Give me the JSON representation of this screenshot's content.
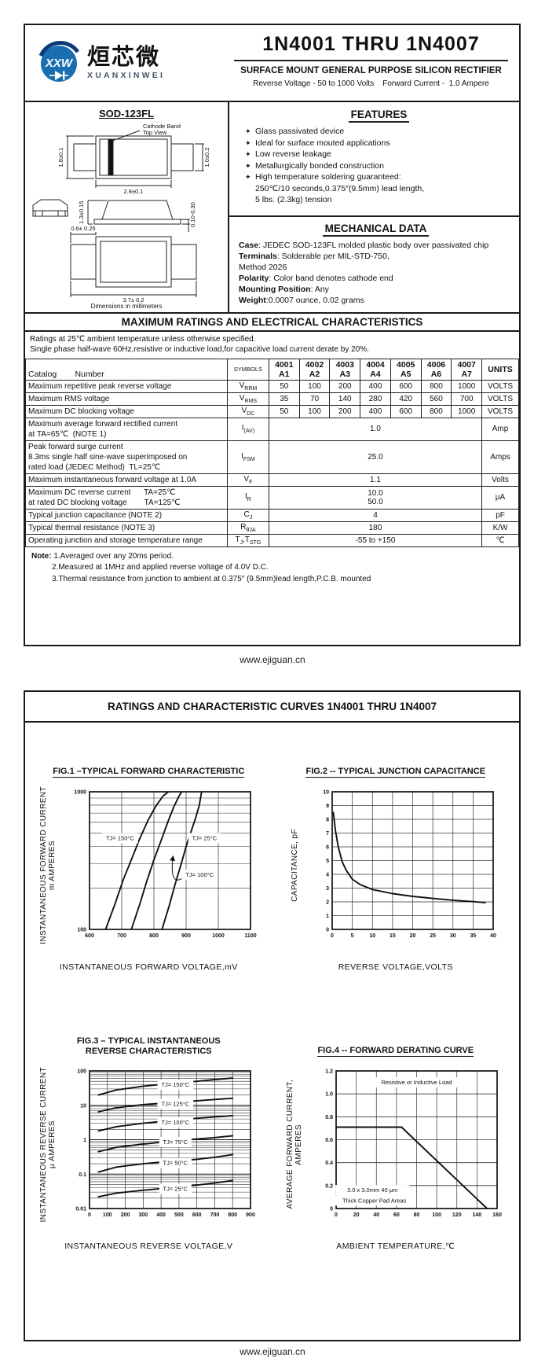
{
  "page": {
    "header": {
      "logo_mark": "XXW",
      "brand_cn": "烜芯微",
      "brand_en": "XUANXINWEI",
      "part_title": "1N4001 THRU  1N4007",
      "subtitle": "SURFACE MOUNT GENERAL PURPOSE SILICON RECTIFIER",
      "line": "Reverse Voltage - 50 to 1000 Volts    Forward Current -  1.0 Ampere"
    },
    "package": {
      "name": "SOD-123FL",
      "ann1": "Cathode Band",
      "ann2": "Top View",
      "d_body_h": "1.8±0.1",
      "d_pad_h": "1.0±0.2",
      "d_body_w": "2.8±0.1",
      "d_side_h": "1.3±0.15",
      "d_standoff": "0.10-0.30",
      "d_pad_w": "0.6± 0.25",
      "d_total_w": "3.7± 0.2",
      "caption": "Dimensions in millimeters"
    },
    "features": {
      "heading": "FEATURES",
      "items": [
        {
          "bullet": true,
          "text": "Glass passivated device"
        },
        {
          "bullet": true,
          "text": "Ideal for surface mouted applications"
        },
        {
          "bullet": true,
          "text": "Low reverse leakage"
        },
        {
          "bullet": true,
          "text": "Metallurgically bonded construction"
        },
        {
          "bullet": true,
          "text": "High temperature soldering guaranteed:"
        },
        {
          "bullet": false,
          "text": "250℃/10 seconds,0.375″(9.5mm) lead length,"
        },
        {
          "bullet": false,
          "text": "5 lbs. (2.3kg) tension"
        }
      ]
    },
    "mechanical": {
      "heading": "MECHANICAL DATA",
      "lines": [
        {
          "label": "Case",
          "text": ": JEDEC SOD-123FL molded plastic body over passivated chip"
        },
        {
          "label": "Terminals",
          "text": ": Solderable per MIL-STD-750,"
        },
        {
          "label": "",
          "text": "Method 2026"
        },
        {
          "label": "Polarity",
          "text": ": Color band denotes cathode end"
        },
        {
          "label": "Mounting Position",
          "text": ": Any"
        },
        {
          "label": "Weight",
          "text": ":0.0007 ounce, 0.02 grams"
        }
      ]
    },
    "ratings": {
      "heading": "MAXIMUM RATINGS AND ELECTRICAL CHARACTERISTICS",
      "conditions": [
        "Ratings at 25℃ ambient temperature unless otherwise specified.",
        "Single phase half-wave 60Hz,resistive or inductive load,for capacitive load current derate by 20%."
      ],
      "table": {
        "catalog_label": "Catalog        Number",
        "symbols_header": "SYMBOLS",
        "units_header": "UNITS",
        "devices": [
          [
            "4001",
            "A1"
          ],
          [
            "4002",
            "A2"
          ],
          [
            "4003",
            "A3"
          ],
          [
            "4004",
            "A4"
          ],
          [
            "4005",
            "A5"
          ],
          [
            "4006",
            "A6"
          ],
          [
            "4007",
            "A7"
          ]
        ],
        "rows": [
          {
            "param": [
              "Maximum repetitive peak reverse voltage"
            ],
            "symbol": [
              [
                "V",
                "RRM"
              ]
            ],
            "values": [
              "50",
              "100",
              "200",
              "400",
              "600",
              "800",
              "1000"
            ],
            "unit": "VOLTS"
          },
          {
            "param": [
              "Maximum RMS voltage"
            ],
            "symbol": [
              [
                "V",
                "RMS"
              ]
            ],
            "values": [
              "35",
              "70",
              "140",
              "280",
              "420",
              "560",
              "700"
            ],
            "unit": "VOLTS"
          },
          {
            "param": [
              "Maximum DC blocking voltage"
            ],
            "symbol": [
              [
                "V",
                "DC"
              ]
            ],
            "values": [
              "50",
              "100",
              "200",
              "400",
              "600",
              "800",
              "1000"
            ],
            "unit": "VOLTS"
          },
          {
            "param": [
              "Maximum average forward rectified current",
              "at TA=65℃  (NOTE 1)"
            ],
            "symbol": [
              [
                "I",
                "(AV)"
              ]
            ],
            "merged": [
              "1.0"
            ],
            "unit": "Amp"
          },
          {
            "param": [
              "Peak forward surge current",
              "8.3ms single half sine-wave superimposed on",
              "rated load (JEDEC Method)  TL=25℃"
            ],
            "symbol": [
              [
                "I",
                "FSM"
              ]
            ],
            "merged": [
              "25.0"
            ],
            "unit": "Amps"
          },
          {
            "param": [
              "Maximum instantaneous forward voltage at 1.0A"
            ],
            "symbol": [
              [
                "V",
                "F"
              ]
            ],
            "merged": [
              "1.1"
            ],
            "unit": "Volts"
          },
          {
            "param": [
              "Maximum DC reverse current      TA=25℃",
              "at rated DC blocking voltage        TA=125℃"
            ],
            "symbol": [
              [
                "I",
                "R"
              ]
            ],
            "merged": [
              "10.0",
              "50.0"
            ],
            "unit": "μA"
          },
          {
            "param": [
              "Typical junction capacitance (NOTE 2)"
            ],
            "symbol": [
              [
                "C",
                "J"
              ]
            ],
            "merged": [
              "4"
            ],
            "unit": "pF"
          },
          {
            "param": [
              "Typical thermal resistance (NOTE 3)"
            ],
            "symbol": [
              [
                "R",
                "θJA"
              ]
            ],
            "merged": [
              "180"
            ],
            "unit": "K/W"
          },
          {
            "param": [
              "Operating junction and storage temperature range"
            ],
            "symbol": [
              [
                "T",
                "J"
              ],
              [
                ",T",
                "STG"
              ]
            ],
            "merged": [
              "-55 to +150"
            ],
            "unit": "℃"
          }
        ]
      },
      "notes": {
        "label": "Note:",
        "items": [
          "1.Averaged over any 20ms period.",
          "2.Measured at 1MHz and applied reverse voltage of 4.0V D.C.",
          "3.Thermal resistance from junction to ambient  at 0.375″ (9.5mm)lead length,P.C.B. mounted"
        ]
      }
    },
    "site": "www.ejiguan.cn"
  },
  "curves_page": {
    "heading": "RATINGS AND CHARACTERISTIC CURVES 1N4001 THRU 1N4007"
  },
  "chart_data": [
    {
      "id": "fig1",
      "type": "line",
      "title": "FIG.1 –TYPICAL FORWARD CHARACTERISTIC",
      "title2": "",
      "xlabel": "INSTANTANEOUS FORWARD VOLTAGE,mV",
      "ylabel": "INSTANTANEOUS FORWARD CURRENT",
      "ylabel2": "m AMPERES",
      "xlim": [
        600,
        1100
      ],
      "xticks": [
        600,
        700,
        800,
        900,
        1000,
        1100
      ],
      "yscale": "log",
      "ylim": [
        100,
        1000
      ],
      "yticks": [
        {
          "v": 100,
          "l": "100"
        },
        {
          "v": 1000,
          "l": "1000"
        }
      ],
      "grid": true,
      "legend": "on-curve labels",
      "series": [
        {
          "name": "TJ= 150°C",
          "points": [
            [
              650,
              100
            ],
            [
              680,
              155
            ],
            [
              705,
              230
            ],
            [
              732,
              330
            ],
            [
              755,
              450
            ],
            [
              780,
              610
            ],
            [
              805,
              780
            ],
            [
              828,
              930
            ],
            [
              845,
              1000
            ]
          ]
        },
        {
          "name": "TJ= 100°C",
          "points": [
            [
              730,
              100
            ],
            [
              757,
              155
            ],
            [
              778,
              225
            ],
            [
              800,
              320
            ],
            [
              822,
              440
            ],
            [
              843,
              600
            ],
            [
              862,
              780
            ],
            [
              878,
              930
            ],
            [
              886,
              1000
            ]
          ]
        },
        {
          "name": "TJ= 25°C",
          "points": [
            [
              825,
              100
            ],
            [
              848,
              150
            ],
            [
              865,
              210
            ],
            [
              883,
              290
            ],
            [
              900,
              400
            ],
            [
              916,
              520
            ],
            [
              930,
              650
            ],
            [
              941,
              800
            ],
            [
              948,
              1000
            ]
          ]
        }
      ],
      "labels": [
        {
          "text": "TJ= 150°C",
          "x": 695,
          "y": 460
        },
        {
          "text": "TJ= 25°C",
          "x": 957,
          "y": 460
        },
        {
          "text": "TJ= 100°C",
          "x": 942,
          "y": 250,
          "leader": [
            852,
            355
          ]
        }
      ]
    },
    {
      "id": "fig2",
      "type": "line",
      "title": "FIG.2 -- TYPICAL JUNCTION CAPACITANCE",
      "title2": "",
      "xlabel": "REVERSE VOLTAGE,VOLTS",
      "ylabel": "CAPACITANCE, pF",
      "ylabel2": "",
      "xlim": [
        0,
        40
      ],
      "xticks": [
        0,
        5,
        10,
        15,
        20,
        25,
        30,
        35,
        40
      ],
      "yscale": "linear",
      "ylim": [
        0,
        10
      ],
      "yticks": [
        {
          "v": 0,
          "l": "0"
        },
        {
          "v": 1,
          "l": "1"
        },
        {
          "v": 2,
          "l": "2"
        },
        {
          "v": 3,
          "l": "3"
        },
        {
          "v": 4,
          "l": "4"
        },
        {
          "v": 5,
          "l": "5"
        },
        {
          "v": 6,
          "l": "6"
        },
        {
          "v": 7,
          "l": "7"
        },
        {
          "v": 8,
          "l": "8"
        },
        {
          "v": 9,
          "l": "9"
        },
        {
          "v": 10,
          "l": "10"
        }
      ],
      "grid": true,
      "series": [
        {
          "name": "Cj",
          "points": [
            [
              0.3,
              8.5
            ],
            [
              0.8,
              7.2
            ],
            [
              1.5,
              6.0
            ],
            [
              2.5,
              4.9
            ],
            [
              3.5,
              4.3
            ],
            [
              5,
              3.65
            ],
            [
              7,
              3.25
            ],
            [
              10,
              2.9
            ],
            [
              15,
              2.6
            ],
            [
              20,
              2.4
            ],
            [
              25,
              2.25
            ],
            [
              30,
              2.12
            ],
            [
              35,
              2.02
            ],
            [
              38,
              1.95
            ]
          ]
        }
      ],
      "labels": []
    },
    {
      "id": "fig3",
      "type": "line",
      "title": "FIG.3 – TYPICAL INSTANTANEOUS",
      "title2": "REVERSE CHARACTERISTICS",
      "xlabel": "INSTANTANEOUS REVERSE VOLTAGE,V",
      "ylabel": "INSTANTANEOUS REVERSE CURRENT",
      "ylabel2": "μ AMPERES",
      "xlim": [
        0,
        900
      ],
      "xticks": [
        0,
        100,
        200,
        300,
        400,
        500,
        600,
        700,
        800,
        900
      ],
      "yscale": "log",
      "ylim": [
        0.01,
        100
      ],
      "yticks": [
        {
          "v": 0.01,
          "l": "0.01"
        },
        {
          "v": 0.1,
          "l": "0.1"
        },
        {
          "v": 1,
          "l": "1"
        },
        {
          "v": 10,
          "l": "10"
        },
        {
          "v": 100,
          "l": "100"
        }
      ],
      "grid": true,
      "legend": "on-curve labels",
      "series": [
        {
          "name": "TJ= 150°C",
          "points": [
            [
              50,
              20
            ],
            [
              150,
              28
            ],
            [
              300,
              36
            ],
            [
              450,
              43
            ],
            [
              600,
              50
            ],
            [
              700,
              56
            ],
            [
              800,
              62
            ]
          ]
        },
        {
          "name": "TJ= 125°C",
          "points": [
            [
              50,
              6.5
            ],
            [
              150,
              8.5
            ],
            [
              300,
              10.5
            ],
            [
              450,
              12
            ],
            [
              600,
              13.5
            ],
            [
              700,
              14.8
            ],
            [
              800,
              16
            ]
          ]
        },
        {
          "name": "TJ= 100°C",
          "points": [
            [
              50,
              1.8
            ],
            [
              150,
              2.4
            ],
            [
              300,
              3.0
            ],
            [
              450,
              3.6
            ],
            [
              600,
              4.2
            ],
            [
              700,
              4.6
            ],
            [
              800,
              5.0
            ]
          ]
        },
        {
          "name": "TJ= 75°C",
          "points": [
            [
              50,
              0.45
            ],
            [
              150,
              0.6
            ],
            [
              300,
              0.75
            ],
            [
              450,
              0.9
            ],
            [
              600,
              1.05
            ],
            [
              700,
              1.15
            ],
            [
              800,
              1.3
            ]
          ]
        },
        {
          "name": "TJ= 50°C",
          "points": [
            [
              50,
              0.115
            ],
            [
              150,
              0.16
            ],
            [
              300,
              0.2
            ],
            [
              450,
              0.235
            ],
            [
              600,
              0.27
            ],
            [
              700,
              0.31
            ],
            [
              800,
              0.37
            ]
          ]
        },
        {
          "name": "TJ= 25°C",
          "points": [
            [
              50,
              0.022
            ],
            [
              150,
              0.028
            ],
            [
              300,
              0.034
            ],
            [
              450,
              0.04
            ],
            [
              600,
              0.048
            ],
            [
              700,
              0.055
            ],
            [
              800,
              0.065
            ]
          ]
        }
      ],
      "labels": [
        {
          "text": "TJ= 150°C",
          "x": 480,
          "y": 40
        },
        {
          "text": "TJ= 125°C",
          "x": 480,
          "y": 11
        },
        {
          "text": "TJ= 100°C",
          "x": 480,
          "y": 3.2
        },
        {
          "text": "TJ= 75°C",
          "x": 480,
          "y": 0.85
        },
        {
          "text": "TJ= 50°C",
          "x": 480,
          "y": 0.21
        },
        {
          "text": "TJ= 25°C",
          "x": 480,
          "y": 0.037
        }
      ]
    },
    {
      "id": "fig4",
      "type": "line",
      "title": "FIG.4 -- FORWARD DERATING CURVE",
      "title2": "",
      "xlabel": "AMBIENT TEMPERATURE,℃",
      "ylabel": "AVERAGE FORWARD CURRENT,",
      "ylabel2": "AMPERES",
      "xlim": [
        0,
        160
      ],
      "xticks": [
        0,
        20,
        40,
        60,
        80,
        100,
        120,
        140,
        160
      ],
      "yscale": "linear",
      "ylim": [
        0,
        1.2
      ],
      "yticks": [
        {
          "v": 0,
          "l": "0"
        },
        {
          "v": 0.2,
          "l": "0.2"
        },
        {
          "v": 0.4,
          "l": "0.4"
        },
        {
          "v": 0.6,
          "l": "0.6"
        },
        {
          "v": 0.8,
          "l": "0.8"
        },
        {
          "v": 1,
          "l": "1.0"
        },
        {
          "v": 1.2,
          "l": "1.2"
        }
      ],
      "grid": true,
      "series": [
        {
          "name": "derating",
          "points": [
            [
              0,
              0.71
            ],
            [
              65,
              0.71
            ],
            [
              150,
              0
            ]
          ]
        }
      ],
      "labels": [
        {
          "text": "Resistive or Inductive Load",
          "x": 80,
          "y": 1.1
        },
        {
          "text": "3.0 x 3.0mm    40 μm",
          "x": 36,
          "y": 0.16
        },
        {
          "text": "Thick Copper Pad Areas",
          "x": 38,
          "y": 0.07
        }
      ]
    }
  ]
}
